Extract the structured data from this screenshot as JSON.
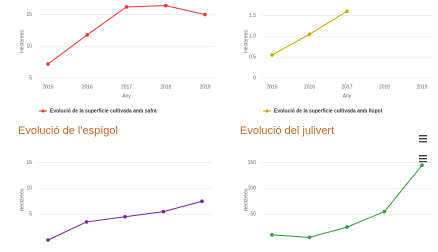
{
  "chart_data": [
    {
      "type": "line",
      "y_label": "Hectàrees",
      "x_label": "Any",
      "categories": [
        "2015",
        "2016",
        "2017",
        "2018",
        "2019"
      ],
      "series": [
        {
          "name": "Evolució de la superfície cultivada amb safrà",
          "color": "#e53935",
          "values": [
            7.2,
            11.8,
            16.2,
            16.4,
            15
          ]
        }
      ],
      "ylim": [
        5,
        16.5
      ],
      "yticks": [
        5,
        10,
        15
      ],
      "grid": true
    },
    {
      "type": "line",
      "y_label": "Hectàrees",
      "x_label": "Any",
      "categories": [
        "2015",
        "2016",
        "2017",
        "2018",
        "2019"
      ],
      "series": [
        {
          "name": "Evolució de la superfície cultivada amb llúpol",
          "color": "#c9a400",
          "values": [
            0.55,
            1.05,
            1.6,
            null,
            null
          ]
        }
      ],
      "ylim": [
        0,
        1.75
      ],
      "yticks": [
        0,
        0.5,
        {
          "value": 1,
          "label": "1.0"
        },
        1.5
      ],
      "grid": true
    },
    {
      "type": "line",
      "title": "Evolució de l'espígol",
      "y_label": "Hectàrees",
      "series": [
        {
          "color": "#7b1fa2",
          "values": [
            0,
            3.5,
            4.5,
            5.5,
            7.5
          ]
        }
      ],
      "ylim": [
        0,
        15.5
      ],
      "yticks": [
        5,
        10,
        15
      ],
      "grid": true
    },
    {
      "type": "line",
      "title": "Evolució del julivert",
      "y_label": "Hectàrees",
      "series": [
        {
          "color": "#2e9e3a",
          "values": [
            10,
            5,
            25,
            55,
            145
          ]
        }
      ],
      "ylim": [
        0,
        155
      ],
      "yticks": [
        50,
        100,
        150
      ],
      "grid": true
    }
  ]
}
